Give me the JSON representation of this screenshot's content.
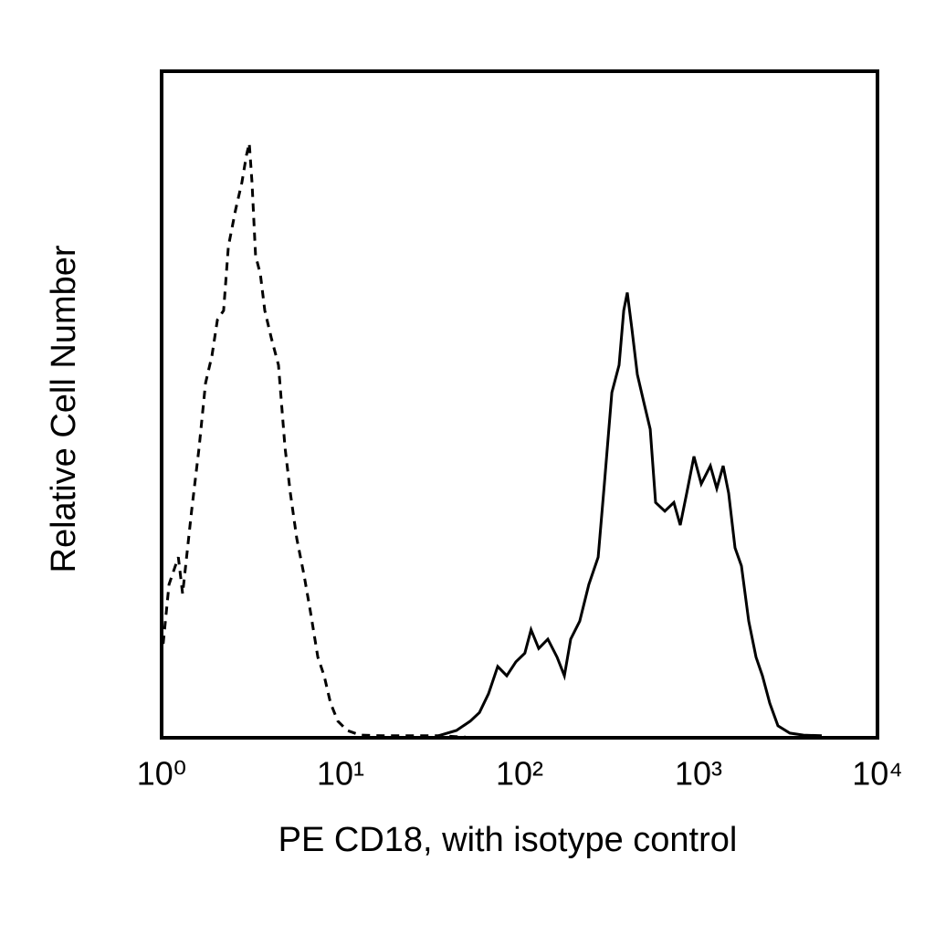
{
  "chart_data": {
    "type": "line",
    "x_label": "PE CD18, with isotype control",
    "y_label": "Relative Cell Number",
    "xscale": "log",
    "xlim": [
      1,
      10000
    ],
    "xticks": [
      {
        "value": 1,
        "label": "10⁰"
      },
      {
        "value": 10,
        "label": "10¹"
      },
      {
        "value": 100,
        "label": "10²"
      },
      {
        "value": 1000,
        "label": "10³"
      },
      {
        "value": 10000,
        "label": "10⁴"
      }
    ],
    "ylim": [
      0,
      100
    ],
    "grid": false,
    "series": [
      {
        "color": "#000000",
        "dashed": true,
        "x": [
          1.02,
          1.1,
          1.24,
          1.31,
          1.47,
          1.62,
          1.76,
          1.91,
          2.05,
          2.22,
          2.36,
          2.59,
          2.81,
          2.98,
          3.09,
          3.2,
          3.35,
          3.56,
          3.77,
          4.1,
          4.5,
          4.89,
          5.24,
          5.69,
          6.25,
          6.79,
          7.46,
          8.09,
          8.79,
          9.65,
          10.9,
          12.9,
          17.4,
          24.7,
          35.2,
          50.0
        ],
        "values": [
          14.1,
          23.0,
          27.1,
          21.6,
          34.0,
          43.6,
          53.2,
          57.3,
          62.7,
          64.1,
          73.7,
          79.2,
          83.3,
          87.4,
          89.2,
          83.3,
          72.3,
          69.6,
          64.1,
          60.0,
          55.9,
          43.6,
          36.7,
          29.9,
          24.4,
          18.9,
          12.1,
          9.3,
          5.2,
          2.5,
          1.1,
          0.4,
          0.3,
          0.3,
          0.3,
          0.1
        ]
      },
      {
        "color": "#000000",
        "dashed": false,
        "x": [
          35.2,
          44.4,
          53.0,
          59.7,
          67.1,
          75.5,
          84.8,
          95.4,
          107,
          116,
          128,
          144,
          162,
          178,
          193,
          217,
          244,
          275,
          298,
          328,
          360,
          382,
          400,
          424,
          455,
          494,
          537,
          576,
          648,
          728,
          791,
          859,
          943,
          1036,
          1165,
          1265,
          1373,
          1474,
          1600,
          1737,
          1908,
          2096,
          2276,
          2500,
          2779,
          3238,
          3862,
          4885
        ],
        "values": [
          0.3,
          1.1,
          2.5,
          3.8,
          6.6,
          10.7,
          9.3,
          11.4,
          12.7,
          16.2,
          13.4,
          14.8,
          12.1,
          9.3,
          14.8,
          17.5,
          23.0,
          27.1,
          38.1,
          51.8,
          55.9,
          64.1,
          66.8,
          61.4,
          54.5,
          50.4,
          46.3,
          35.3,
          34.0,
          35.3,
          31.9,
          36.7,
          42.2,
          38.1,
          40.8,
          37.4,
          40.8,
          36.7,
          28.5,
          25.8,
          17.5,
          12.1,
          9.3,
          5.2,
          1.8,
          0.7,
          0.4,
          0.3
        ]
      }
    ]
  }
}
